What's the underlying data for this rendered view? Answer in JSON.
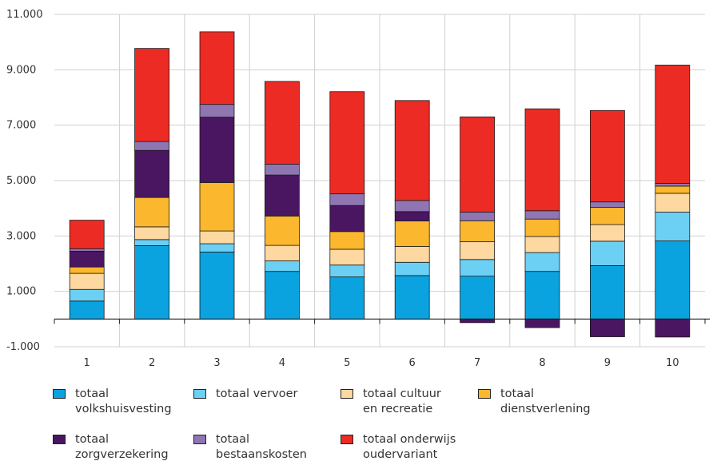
{
  "chart_data": {
    "type": "bar",
    "stacked": true,
    "categories": [
      "1",
      "2",
      "3",
      "4",
      "5",
      "6",
      "7",
      "8",
      "9",
      "10"
    ],
    "ylim": [
      -1000,
      11000
    ],
    "yticks": [
      "11.000",
      "9.000",
      "7.000",
      "5.000",
      "3.000",
      "1.000",
      "-1.000"
    ],
    "ytick_values": [
      11000,
      9000,
      7000,
      5000,
      3000,
      1000,
      -1000
    ],
    "grid": true,
    "legend_position": "bottom",
    "series": [
      {
        "name": "totaal volkshuisvesting",
        "color": "#0aa3e0",
        "values": [
          650,
          2650,
          2420,
          1720,
          1520,
          1570,
          1550,
          1720,
          1930,
          2820
        ]
      },
      {
        "name": "totaal vervoer",
        "color": "#6cd0f5",
        "values": [
          420,
          220,
          300,
          380,
          430,
          480,
          600,
          680,
          880,
          1040
        ]
      },
      {
        "name": "totaal cultuur en recreatie",
        "color": "#fdd8a0",
        "values": [
          580,
          460,
          460,
          560,
          570,
          570,
          640,
          580,
          600,
          680
        ]
      },
      {
        "name": "totaal dienstverlening",
        "color": "#fbb72e",
        "values": [
          230,
          1060,
          1750,
          1060,
          640,
          920,
          760,
          630,
          620,
          260
        ]
      },
      {
        "name": "totaal zorgverzekering",
        "color": "#4a1561",
        "values": [
          570,
          1700,
          2360,
          1480,
          940,
          340,
          -130,
          -310,
          -640,
          -650
        ]
      },
      {
        "name": "totaal bestaanskosten",
        "color": "#8f76b3",
        "values": [
          90,
          320,
          460,
          390,
          420,
          400,
          310,
          300,
          200,
          100
        ]
      },
      {
        "name": "totaal onderwijs oudervariant",
        "color": "#ec2b25",
        "values": [
          1030,
          3360,
          2620,
          2990,
          3690,
          3610,
          3440,
          3680,
          3300,
          4270
        ]
      }
    ]
  },
  "legend": [
    {
      "label": "totaal\nvolkshuisvesting",
      "color": "#0aa3e0"
    },
    {
      "label": "totaal vervoer",
      "color": "#6cd0f5"
    },
    {
      "label": "totaal cultuur\nen recreatie",
      "color": "#fdd8a0"
    },
    {
      "label": "totaal\ndienstverlening",
      "color": "#fbb72e"
    },
    {
      "label": "totaal\nzorgverzekering",
      "color": "#4a1561"
    },
    {
      "label": "totaal\nbestaanskosten",
      "color": "#8f76b3"
    },
    {
      "label": "totaal onderwijs\noudervariant",
      "color": "#ec2b25"
    }
  ]
}
